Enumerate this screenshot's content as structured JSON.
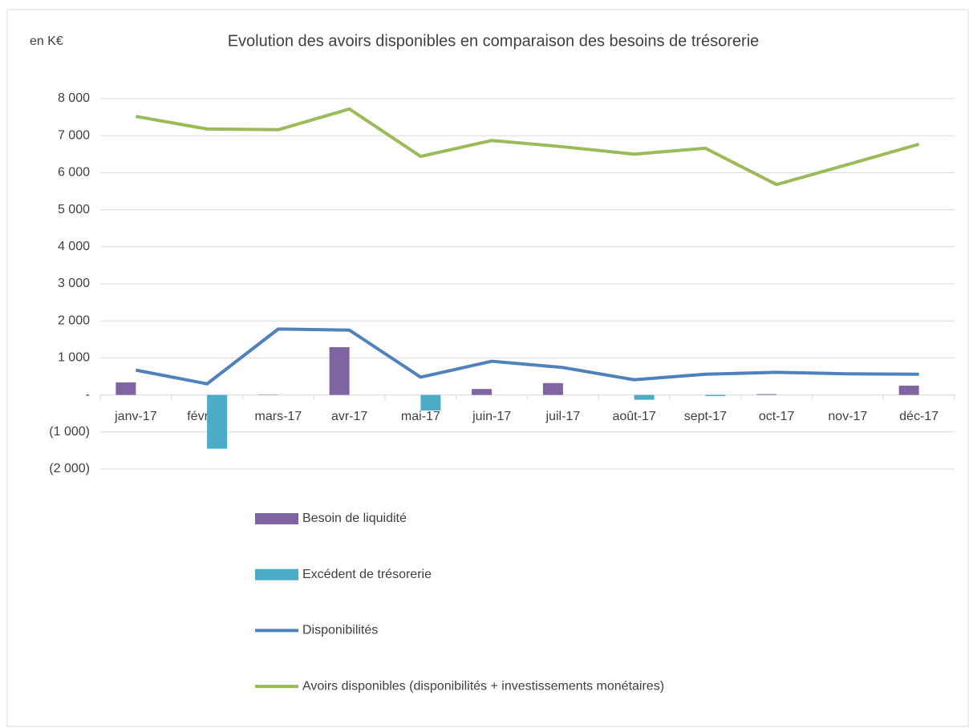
{
  "chart_data": {
    "type": "bar",
    "title": "Evolution des avoirs disponibles en comparaison des besoins de trésorerie",
    "y_label": "en K€",
    "categories": [
      "janv-17",
      "févr-17",
      "mars-17",
      "avr-17",
      "mai-17",
      "juin-17",
      "juil-17",
      "août-17",
      "sept-17",
      "oct-17",
      "nov-17",
      "déc-17"
    ],
    "series": [
      {
        "name": "Besoin de liquidité",
        "type": "bar",
        "color": "#8064a2",
        "values": [
          340,
          0,
          10,
          1290,
          0,
          160,
          320,
          0,
          0,
          20,
          0,
          250
        ]
      },
      {
        "name": "Excédent de trésorerie",
        "type": "bar",
        "color": "#4bacc6",
        "values": [
          0,
          -1450,
          0,
          0,
          -420,
          0,
          0,
          -130,
          -30,
          0,
          0,
          0
        ]
      },
      {
        "name": "Disponibilités",
        "type": "line",
        "color": "#4f81bd",
        "values": [
          670,
          300,
          1780,
          1750,
          480,
          910,
          740,
          410,
          560,
          610,
          570,
          560
        ]
      },
      {
        "name": "Avoirs disponibles (disponibilités + investissements monétaires)",
        "type": "line",
        "color": "#9bbb59",
        "values": [
          7520,
          7180,
          7160,
          7720,
          6440,
          6870,
          6700,
          6500,
          6660,
          5680,
          6220,
          6770
        ]
      }
    ],
    "ylim": [
      -2000,
      8000
    ],
    "yticks": [
      {
        "value": -2000,
        "label": "(2 000)"
      },
      {
        "value": -1000,
        "label": "(1 000)"
      },
      {
        "value": 0,
        "label": "-"
      },
      {
        "value": 1000,
        "label": "1 000"
      },
      {
        "value": 2000,
        "label": "2 000"
      },
      {
        "value": 3000,
        "label": "3 000"
      },
      {
        "value": 4000,
        "label": "4 000"
      },
      {
        "value": 5000,
        "label": "5 000"
      },
      {
        "value": 6000,
        "label": "6 000"
      },
      {
        "value": 7000,
        "label": "7 000"
      },
      {
        "value": 8000,
        "label": "8 000"
      }
    ],
    "grid": true,
    "legend": "bottom"
  }
}
